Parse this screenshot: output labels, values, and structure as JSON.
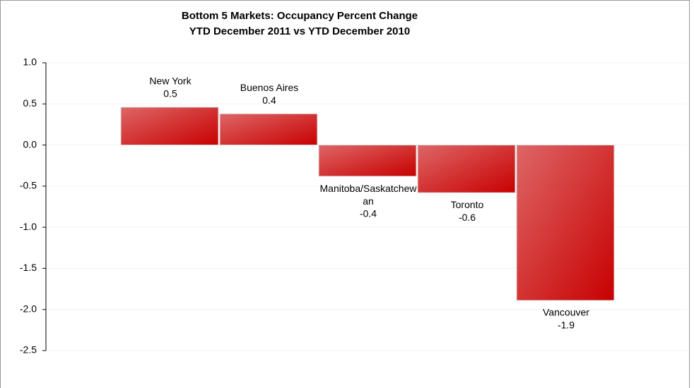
{
  "chart_data": {
    "type": "bar",
    "title": "Bottom 5 Markets: Occupancy Percent Change",
    "subtitle": "YTD December 2011 vs YTD December 2010",
    "categories": [
      "New York",
      "Buenos Aires",
      "Manitoba/Saskatchewan",
      "Toronto",
      "Vancouver"
    ],
    "values": [
      0.46,
      0.38,
      -0.38,
      -0.58,
      -1.89
    ],
    "value_labels": [
      "0.5",
      "0.4",
      "-0.4",
      "-0.6",
      "-1.9"
    ],
    "color": "#c80000",
    "ylim": [
      -2.5,
      1.0
    ],
    "yticks": [
      {
        "value": 1.0,
        "label": "1.0"
      },
      0.5,
      {
        "value": 0.0,
        "label": "0.0"
      },
      -0.5,
      {
        "value": -1.0,
        "label": "-1.0"
      },
      -1.5,
      {
        "value": -2.0,
        "label": "-2.0"
      },
      -2.5
    ],
    "grid": true
  }
}
